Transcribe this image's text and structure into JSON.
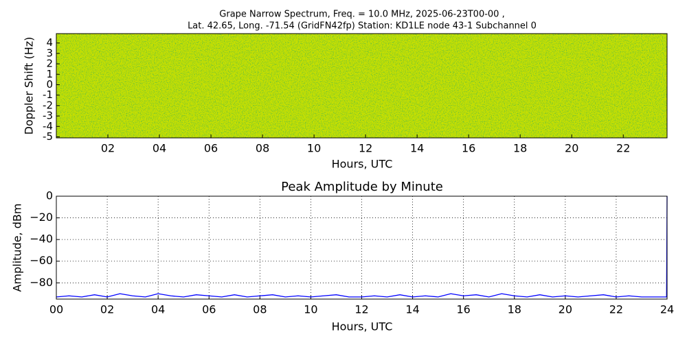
{
  "chart_data": [
    {
      "type": "spectrogram",
      "title": "Grape Narrow Spectrum, Freq. = 10.0 MHz, 2025-06-23T00-00 ,",
      "subtitle": "Lat.  42.65, Long. -71.54 (GridFN42fp) Station: KD1LE node 43-1 Subchannel 0",
      "x_label": "Hours, UTC",
      "y_label": "Doppler Shift (Hz)",
      "xlim": [
        0,
        23.7
      ],
      "ylim": [
        -5.1,
        4.9
      ],
      "xticks": [
        {
          "value": 2,
          "label": "02"
        },
        {
          "value": 4,
          "label": "04"
        },
        {
          "value": 6,
          "label": "06"
        },
        {
          "value": 8,
          "label": "08"
        },
        10,
        12,
        14,
        16,
        18,
        20,
        22
      ],
      "yticks": [
        4,
        3,
        2,
        1,
        0,
        -1,
        -2,
        -3,
        -4,
        -5
      ]
    },
    {
      "type": "line",
      "title": "Peak Amplitude by Minute",
      "x_label": "Hours, UTC",
      "y_label": "Amplitude, dBm",
      "xlim": [
        0,
        24
      ],
      "ylim": [
        -95,
        0
      ],
      "grid": true,
      "xticks": [
        {
          "value": 0,
          "label": "00"
        },
        {
          "value": 2,
          "label": "02"
        },
        {
          "value": 4,
          "label": "04"
        },
        {
          "value": 6,
          "label": "06"
        },
        {
          "value": 8,
          "label": "08"
        },
        10,
        12,
        14,
        16,
        18,
        20,
        22,
        24
      ],
      "yticks": [
        0,
        {
          "value": -20,
          "label": "−20"
        },
        {
          "value": -40,
          "label": "−40"
        },
        {
          "value": -60,
          "label": "−60"
        },
        {
          "value": -80,
          "label": "−80"
        }
      ],
      "x": [
        0,
        0.5,
        1,
        1.5,
        2,
        2.5,
        3,
        3.5,
        4,
        4.5,
        5,
        5.5,
        6,
        6.5,
        7,
        7.5,
        8,
        8.5,
        9,
        9.5,
        10,
        10.5,
        11,
        11.5,
        12,
        12.5,
        13,
        13.5,
        14,
        14.5,
        15,
        15.5,
        16,
        16.5,
        17,
        17.5,
        18,
        18.5,
        19,
        19.5,
        20,
        20.5,
        21,
        21.5,
        22,
        22.5,
        23,
        23.5,
        23.98,
        24
      ],
      "series": [
        {
          "color": "#0000ff",
          "values": [
            -93,
            -92,
            -93,
            -91,
            -93,
            -90,
            -92,
            -93,
            -90,
            -92,
            -93,
            -91,
            -92,
            -93,
            -91,
            -93,
            -92,
            -91,
            -93,
            -92,
            -93,
            -92,
            -91,
            -93,
            -93,
            -92,
            -93,
            -91,
            -93,
            -92,
            -93,
            -90,
            -92,
            -91,
            -93,
            -90,
            -92,
            -93,
            -91,
            -93,
            -92,
            -93,
            -92,
            -91,
            -93,
            -92,
            -93,
            -93,
            -93,
            0
          ]
        }
      ]
    }
  ]
}
